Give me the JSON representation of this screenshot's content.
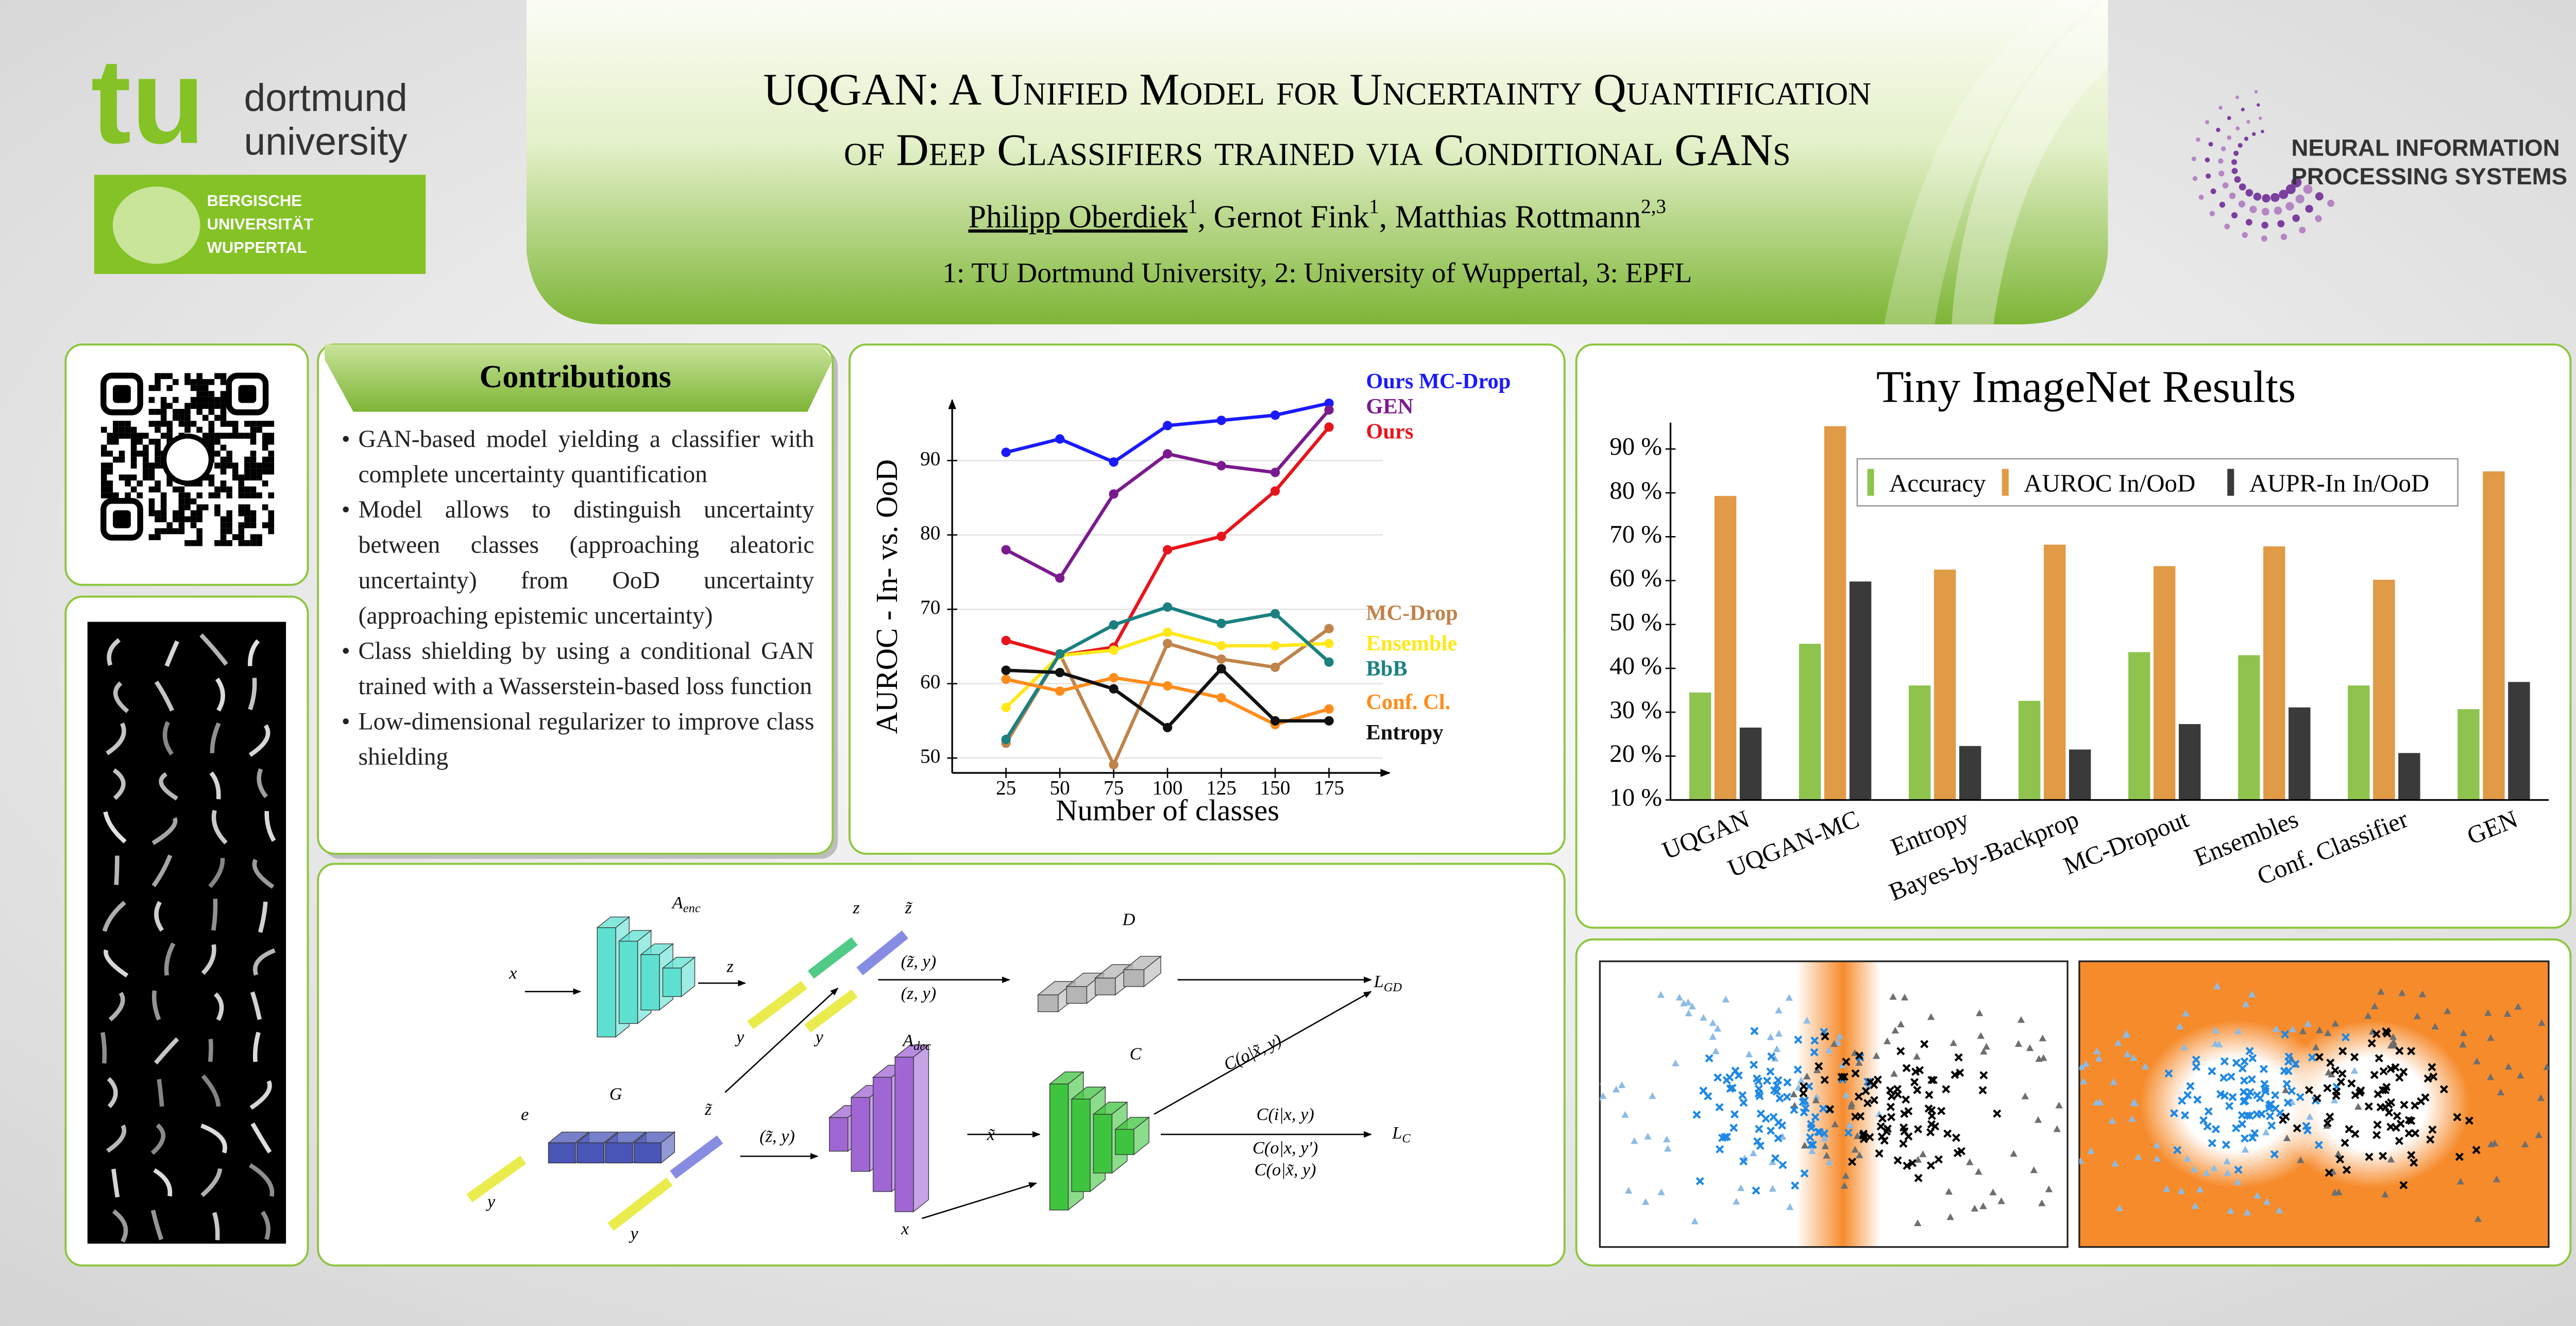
{
  "header": {
    "title": [
      "UQGAN: A Unified Model for Uncertainty Quantification",
      "of Deep Classifiers trained via Conditional GANs"
    ],
    "authors": [
      {
        "name": "Philipp Oberdiek",
        "affiliation": "1"
      },
      {
        "name": "Gernot Fink",
        "affiliation": "1"
      },
      {
        "name": "Matthias Rottmann",
        "affiliation": "2,3"
      }
    ],
    "separator": ",",
    "affiliations": "1: TU Dortmund University, 2: University of Wuppertal, 3: EPFL"
  },
  "logos": {
    "tu_mark": "tu",
    "tu_name": [
      "dortmund",
      "university"
    ],
    "wuppertal": [
      "BERGISCHE",
      "UNIVERSITÄT",
      "WUPPERTAL"
    ],
    "neurips": [
      "NEURAL INFORMATION",
      "PROCESSING SYSTEMS"
    ]
  },
  "contributions": {
    "title": "Contributions",
    "items": [
      "GAN-based model yielding a classifier with complete uncertainty quantification",
      "Model allows to distinguish uncertainty between classes (approaching aleatoric uncertainty) from OoD uncertainty (approaching epistemic uncertainty)",
      "Class shielding by using a conditional GAN trained with a Wasserstein-based loss function",
      "Low-dimensional regularizer to improve class shielding"
    ]
  },
  "chart_data": [
    {
      "type": "line",
      "x_label": "Number of classes",
      "y_label": "AUROC - In- vs. OoD",
      "x": [
        25,
        50,
        75,
        100,
        125,
        150,
        175
      ],
      "xlim": [
        5,
        195
      ],
      "xticks": [
        25,
        50,
        75,
        100,
        125,
        150,
        175
      ],
      "ylim": [
        48,
        99
      ],
      "yticks": [
        50,
        60,
        70,
        80,
        90
      ],
      "grid": true,
      "series": [
        {
          "name": "Ours MC-Drop",
          "color": "#1a1aff",
          "values": [
            91.1,
            92.9,
            89.8,
            94.7,
            95.4,
            96.1,
            97.7
          ]
        },
        {
          "name": "GEN",
          "color": "#7b1a8e",
          "values": [
            78.0,
            74.2,
            85.5,
            90.9,
            89.3,
            88.4,
            96.8
          ]
        },
        {
          "name": "Ours",
          "color": "#e8141b",
          "values": [
            65.8,
            63.8,
            64.9,
            78.0,
            79.8,
            85.9,
            94.5
          ]
        },
        {
          "name": "MC-Drop",
          "color": "#c0834a",
          "values": [
            52.0,
            64.0,
            49.1,
            65.4,
            63.3,
            62.2,
            67.4
          ]
        },
        {
          "name": "Ensemble",
          "color": "#ffe81a",
          "values": [
            56.8,
            63.8,
            64.5,
            66.9,
            65.1,
            65.1,
            65.4
          ]
        },
        {
          "name": "BbB",
          "color": "#1a8080",
          "values": [
            52.5,
            64.0,
            67.9,
            70.3,
            68.1,
            69.4,
            62.9
          ]
        },
        {
          "name": "Conf. Cl.",
          "color": "#ff8c1a",
          "values": [
            60.6,
            59.0,
            60.8,
            59.7,
            58.1,
            54.5,
            56.6
          ]
        },
        {
          "name": "Entropy",
          "color": "#111111",
          "values": [
            61.8,
            61.5,
            59.3,
            54.1,
            62.0,
            55.0,
            55.0
          ]
        }
      ]
    },
    {
      "type": "bar",
      "title": "Tiny ImageNet Results",
      "categories": [
        "UQGAN",
        "UQGAN-MC",
        "Entropy",
        "Bayes-by-Backprop",
        "MC-Dropout",
        "Ensembles",
        "Conf. Classifier",
        "GEN"
      ],
      "ylim": [
        10,
        96
      ],
      "yticks": [
        {
          "value": 10,
          "label": "10 %"
        },
        {
          "value": 20,
          "label": "20 %"
        },
        {
          "value": 30,
          "label": "30 %"
        },
        {
          "value": 40,
          "label": "40 %"
        },
        {
          "value": 50,
          "label": "50 %"
        },
        {
          "value": 60,
          "label": "60 %"
        },
        {
          "value": 70,
          "label": "70 %"
        },
        {
          "value": 80,
          "label": "80 %"
        },
        {
          "value": 90,
          "label": "90 %"
        }
      ],
      "grid": false,
      "series": [
        {
          "name": "Accuracy",
          "color": "#8ec44e",
          "values": [
            34.5,
            45.6,
            36.1,
            32.6,
            43.7,
            43.0,
            36.1,
            30.7
          ]
        },
        {
          "name": "AUROC In/OoD",
          "color": "#e19a45",
          "values": [
            79.3,
            95.2,
            62.5,
            68.2,
            63.3,
            67.8,
            60.2,
            84.9
          ]
        },
        {
          "name": "AUPR-In In/OoD",
          "color": "#3a3a3a",
          "values": [
            26.5,
            59.8,
            22.3,
            21.5,
            27.3,
            31.1,
            20.7,
            36.9
          ]
        }
      ]
    }
  ],
  "diagram": {
    "labels": [
      {
        "base": "A",
        "sub": "enc"
      },
      "x",
      "z",
      "y",
      "y",
      "z",
      "z̃",
      "(z̃, y)",
      "(z, y)",
      "D",
      {
        "base": "L",
        "sub": "GD"
      },
      "G",
      "e",
      "y",
      "z̃",
      "(z̃, y)",
      {
        "base": "A",
        "sub": "dec"
      },
      "x̃",
      "C",
      "C(o|x̃, y)",
      "C(i|x, y)",
      {
        "base": "L",
        "sub": "C"
      },
      "C(o|x, y')",
      "C(o|x̃, y)",
      "y",
      "x"
    ]
  }
}
